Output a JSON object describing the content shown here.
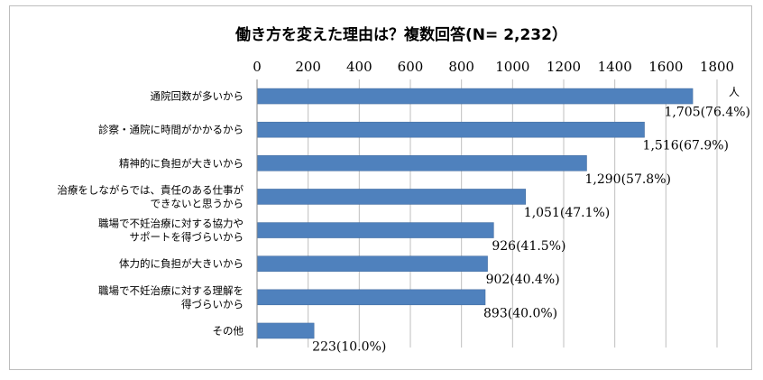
{
  "chart_data": {
    "type": "bar",
    "orientation": "horizontal",
    "title": "働き方を変えた理由は？複数回答(N= 2,232）",
    "unit_label": "人",
    "xlim": [
      0,
      1800
    ],
    "x_ticks": [
      "0",
      "200",
      "400",
      "600",
      "800",
      "1000",
      "1200",
      "1400",
      "1600",
      "1800"
    ],
    "grid": true,
    "bar_color": "#4f81bd",
    "categories": [
      [
        "通院回数が多いから"
      ],
      [
        "診察・通院に時間がかかるから"
      ],
      [
        "精神的に負担が大きいから"
      ],
      [
        "治療をしながらでは、責任のある仕事が",
        "できないと思うから"
      ],
      [
        "職場で不妊治療に対する協力や",
        "サポートを得づらいから"
      ],
      [
        "体力的に負担が大きいから"
      ],
      [
        "職場で不妊治療に対する理解を",
        "得づらいから"
      ],
      [
        "その他"
      ]
    ],
    "values": [
      1705,
      1516,
      1290,
      1051,
      926,
      902,
      893,
      223
    ],
    "value_labels": [
      "1,705(76.4%)",
      "1,516(67.9%)",
      "1,290(57.8%)",
      "1,051(47.1%)",
      "926(41.5%)",
      "902(40.4%)",
      "893(40.0%)",
      "223(10.0%)"
    ]
  }
}
